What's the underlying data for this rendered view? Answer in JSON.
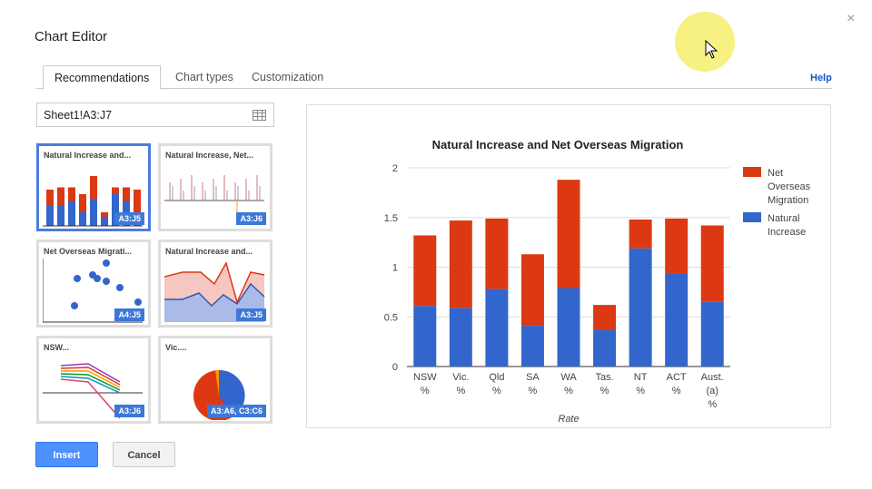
{
  "dialog": {
    "title": "Chart Editor",
    "close": "×",
    "help": "Help"
  },
  "tabs": [
    {
      "label": "Recommendations",
      "active": true
    },
    {
      "label": "Chart types"
    },
    {
      "label": "Customization"
    }
  ],
  "range": {
    "value": "Sheet1!A3:J7",
    "icon": "grid-icon"
  },
  "thumbnails": [
    {
      "title": "Natural Increase and...",
      "range": "A3:J5",
      "type": "stacked-column",
      "selected": true
    },
    {
      "title": "Natural Increase, Net...",
      "range": "A3:J6",
      "type": "column"
    },
    {
      "title": "Net Overseas Migrati...",
      "range": "A4:J5",
      "type": "scatter"
    },
    {
      "title": "Natural Increase and...",
      "range": "A3:J5",
      "type": "area"
    },
    {
      "title": "NSW...",
      "range": "A3:J6",
      "type": "line"
    },
    {
      "title": "Vic....",
      "range": "A3:A6, C3:C6",
      "type": "pie"
    }
  ],
  "buttons": {
    "insert": "Insert",
    "cancel": "Cancel"
  },
  "colors": {
    "natural": "#3366cc",
    "net": "#dc3912",
    "accent": "#4d90fe"
  },
  "chart_data": {
    "type": "bar",
    "stacked": true,
    "title": "Natural Increase and Net Overseas Migration",
    "xlabel": "Rate",
    "ylabel": "",
    "categories": [
      [
        "NSW",
        "%"
      ],
      [
        "Vic.",
        "%"
      ],
      [
        "Qld",
        "%"
      ],
      [
        "SA",
        "%"
      ],
      [
        "WA",
        "%"
      ],
      [
        "Tas.",
        "%"
      ],
      [
        "NT",
        "%"
      ],
      [
        "ACT",
        "%"
      ],
      [
        "Aust.",
        "(a)",
        "%"
      ]
    ],
    "yticks": [
      "0",
      "0.5",
      "1",
      "1.5",
      "2"
    ],
    "ylim": [
      0,
      2
    ],
    "grid": true,
    "legend": "right",
    "series": [
      {
        "name": "Natural Increase",
        "color": "#3366cc",
        "values": [
          0.61,
          0.59,
          0.78,
          0.41,
          0.79,
          0.37,
          1.19,
          0.94,
          0.65
        ]
      },
      {
        "name": "Net Overseas Migration",
        "color": "#dc3912",
        "values": [
          0.71,
          0.88,
          0.71,
          0.72,
          1.09,
          0.25,
          0.29,
          0.55,
          0.77
        ]
      }
    ],
    "legend_lines": [
      [
        "Net",
        "Overseas",
        "Migration"
      ],
      [
        "Natural",
        "Increase"
      ]
    ]
  }
}
